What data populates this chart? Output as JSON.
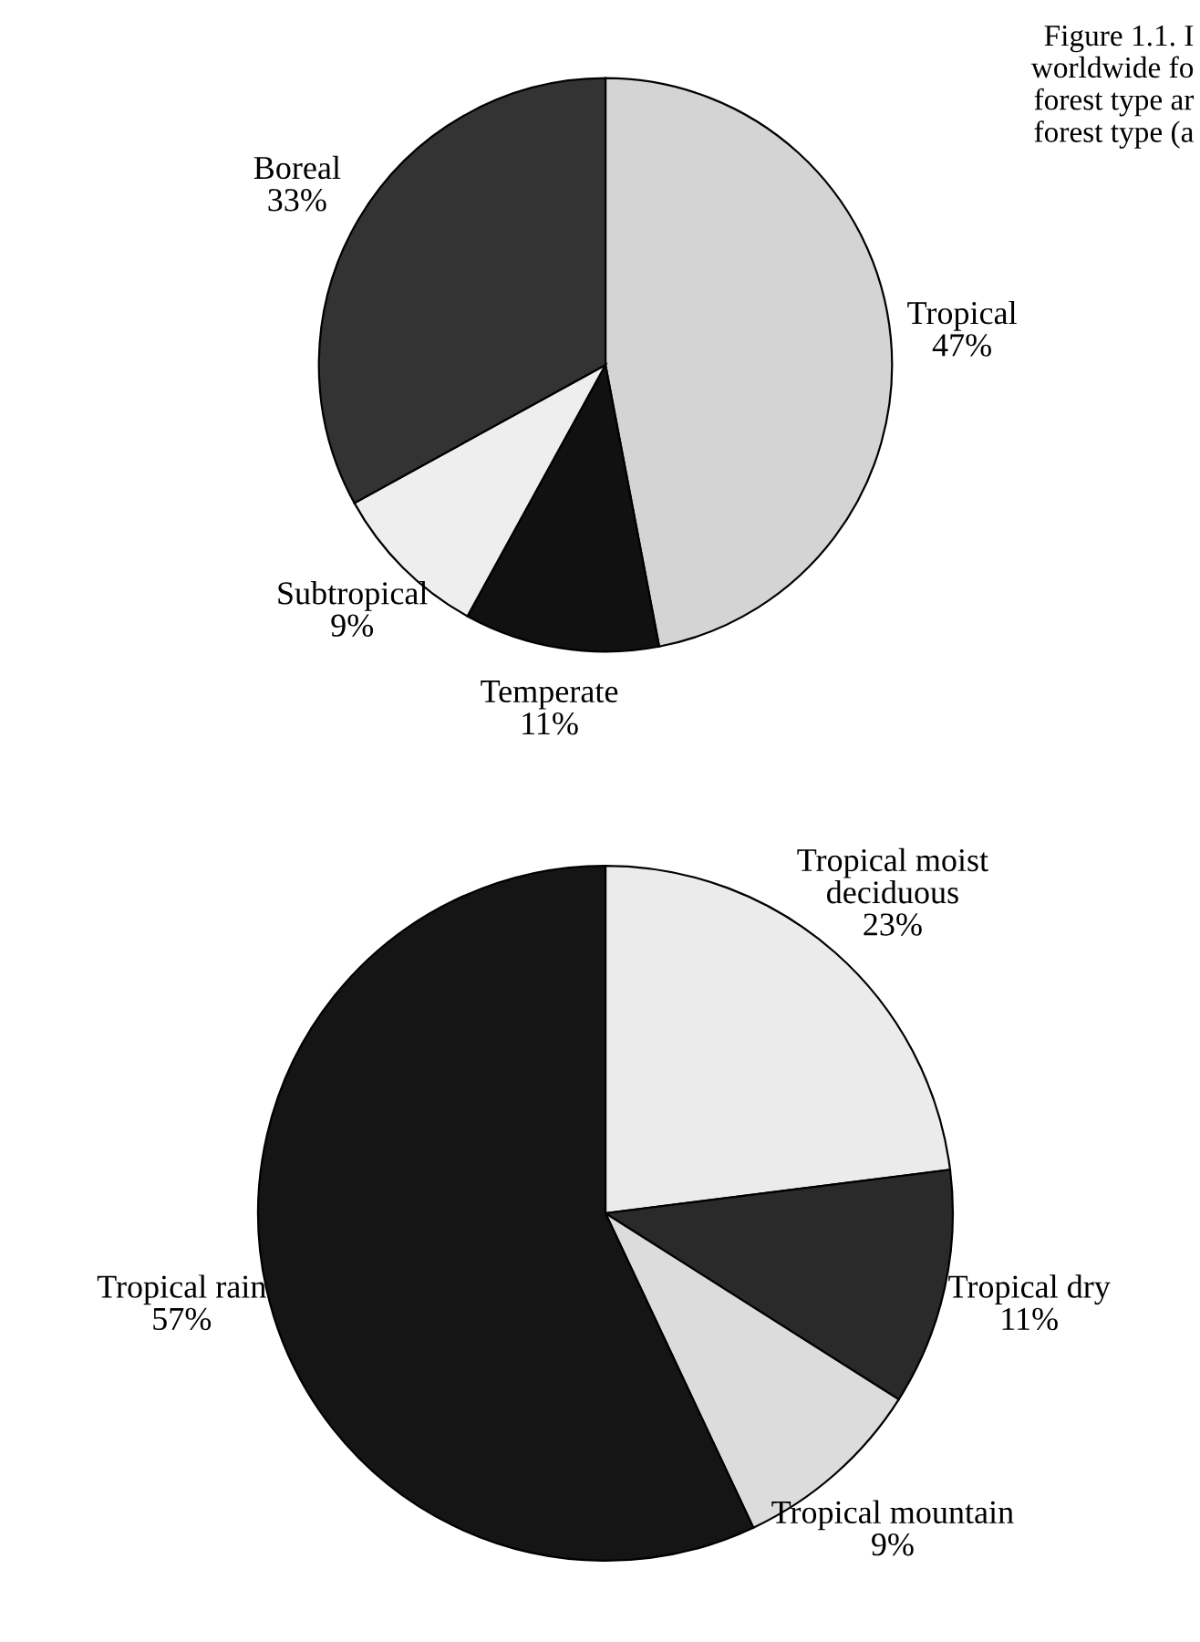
{
  "chart_data": [
    {
      "type": "pie",
      "categories": [
        "Tropical",
        "Temperate",
        "Subtropical",
        "Boreal"
      ],
      "values": [
        47,
        11,
        9,
        33
      ],
      "value_labels": [
        "47%",
        "11%",
        "9%",
        "33%"
      ],
      "colors": [
        "#d4d4d4",
        "#111111",
        "#eeeeee",
        "#333333"
      ],
      "annotations": [
        "Figure 1.1. I\nworldwide fo\nforest type ar\nforest type (a"
      ]
    },
    {
      "type": "pie",
      "categories": [
        "Tropical moist\ndeciduous",
        "Tropical dry",
        "Tropical mountain",
        "Tropical rain"
      ],
      "values": [
        23,
        11,
        9,
        57
      ],
      "value_labels": [
        "23%",
        "11%",
        "9%",
        "57%"
      ],
      "colors": [
        "#ebebeb",
        "#2a2a2a",
        "#dcdcdc",
        "#151515"
      ]
    }
  ]
}
